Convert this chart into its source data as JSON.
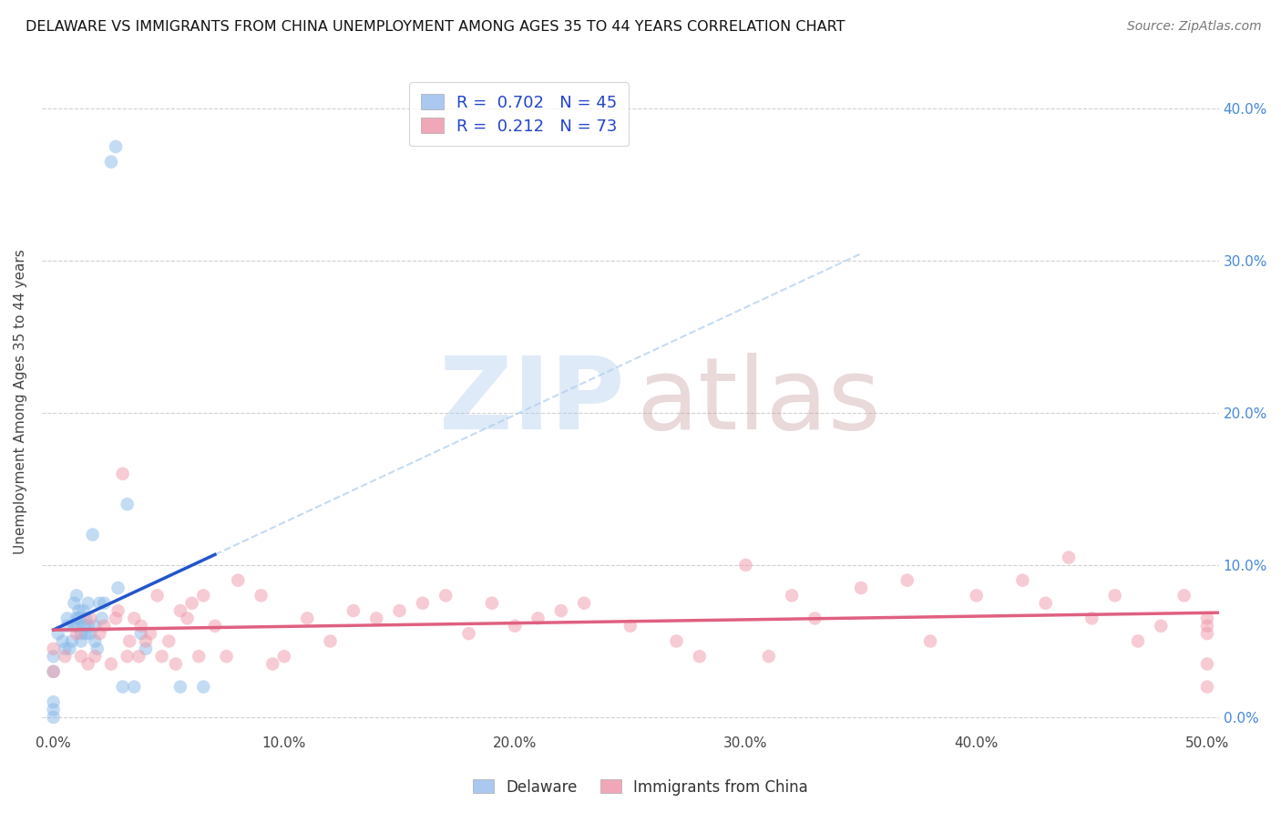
{
  "title": "DELAWARE VS IMMIGRANTS FROM CHINA UNEMPLOYMENT AMONG AGES 35 TO 44 YEARS CORRELATION CHART",
  "source": "Source: ZipAtlas.com",
  "ylabel": "Unemployment Among Ages 35 to 44 years",
  "xlabel_ticks": [
    "0.0%",
    "10.0%",
    "20.0%",
    "30.0%",
    "40.0%",
    "50.0%"
  ],
  "xlabel_vals": [
    0.0,
    0.1,
    0.2,
    0.3,
    0.4,
    0.5
  ],
  "ylabel_ticks_right": [
    "0.0%",
    "10.0%",
    "20.0%",
    "30.0%",
    "40.0%"
  ],
  "ylabel_vals": [
    0.0,
    0.1,
    0.2,
    0.3,
    0.4
  ],
  "xlim": [
    -0.005,
    0.505
  ],
  "ylim": [
    -0.01,
    0.425
  ],
  "background_color": "#ffffff",
  "grid_color": "#d0d0d0",
  "legend_R1": "0.702",
  "legend_N1": "45",
  "legend_R2": "0.212",
  "legend_N2": "73",
  "legend_color1": "#aac8f0",
  "legend_color2": "#f0a8b8",
  "series1_color": "#88b8e8",
  "series2_color": "#f098a8",
  "trendline1_color": "#2255cc",
  "trendline2_color": "#e06080",
  "trendline1_dashed_color": "#aaccee",
  "series1_label": "Delaware",
  "series2_label": "Immigrants from China",
  "del_x": [
    0.0,
    0.0,
    0.0,
    0.0,
    0.0,
    0.002,
    0.004,
    0.005,
    0.006,
    0.006,
    0.007,
    0.008,
    0.009,
    0.009,
    0.01,
    0.01,
    0.01,
    0.011,
    0.011,
    0.012,
    0.012,
    0.013,
    0.013,
    0.014,
    0.014,
    0.015,
    0.015,
    0.016,
    0.017,
    0.018,
    0.018,
    0.019,
    0.02,
    0.021,
    0.022,
    0.025,
    0.027,
    0.028,
    0.03,
    0.032,
    0.035,
    0.038,
    0.04,
    0.055,
    0.065
  ],
  "del_y": [
    0.0,
    0.005,
    0.01,
    0.03,
    0.04,
    0.055,
    0.05,
    0.045,
    0.06,
    0.065,
    0.045,
    0.05,
    0.075,
    0.06,
    0.065,
    0.08,
    0.06,
    0.065,
    0.07,
    0.05,
    0.055,
    0.06,
    0.07,
    0.055,
    0.065,
    0.06,
    0.075,
    0.055,
    0.12,
    0.05,
    0.06,
    0.045,
    0.075,
    0.065,
    0.075,
    0.365,
    0.375,
    0.085,
    0.02,
    0.14,
    0.02,
    0.055,
    0.045,
    0.02,
    0.02
  ],
  "china_x": [
    0.0,
    0.0,
    0.005,
    0.01,
    0.012,
    0.015,
    0.016,
    0.018,
    0.02,
    0.022,
    0.025,
    0.027,
    0.028,
    0.03,
    0.032,
    0.033,
    0.035,
    0.037,
    0.038,
    0.04,
    0.042,
    0.045,
    0.047,
    0.05,
    0.053,
    0.055,
    0.058,
    0.06,
    0.063,
    0.065,
    0.07,
    0.075,
    0.08,
    0.09,
    0.095,
    0.1,
    0.11,
    0.12,
    0.13,
    0.14,
    0.15,
    0.16,
    0.17,
    0.18,
    0.19,
    0.2,
    0.21,
    0.22,
    0.23,
    0.25,
    0.27,
    0.28,
    0.3,
    0.31,
    0.32,
    0.33,
    0.35,
    0.37,
    0.38,
    0.4,
    0.42,
    0.43,
    0.44,
    0.45,
    0.46,
    0.47,
    0.48,
    0.49,
    0.5,
    0.5,
    0.5,
    0.5,
    0.5
  ],
  "china_y": [
    0.03,
    0.045,
    0.04,
    0.055,
    0.04,
    0.035,
    0.065,
    0.04,
    0.055,
    0.06,
    0.035,
    0.065,
    0.07,
    0.16,
    0.04,
    0.05,
    0.065,
    0.04,
    0.06,
    0.05,
    0.055,
    0.08,
    0.04,
    0.05,
    0.035,
    0.07,
    0.065,
    0.075,
    0.04,
    0.08,
    0.06,
    0.04,
    0.09,
    0.08,
    0.035,
    0.04,
    0.065,
    0.05,
    0.07,
    0.065,
    0.07,
    0.075,
    0.08,
    0.055,
    0.075,
    0.06,
    0.065,
    0.07,
    0.075,
    0.06,
    0.05,
    0.04,
    0.1,
    0.04,
    0.08,
    0.065,
    0.085,
    0.09,
    0.05,
    0.08,
    0.09,
    0.075,
    0.105,
    0.065,
    0.08,
    0.05,
    0.06,
    0.08,
    0.065,
    0.035,
    0.02,
    0.055,
    0.06
  ]
}
